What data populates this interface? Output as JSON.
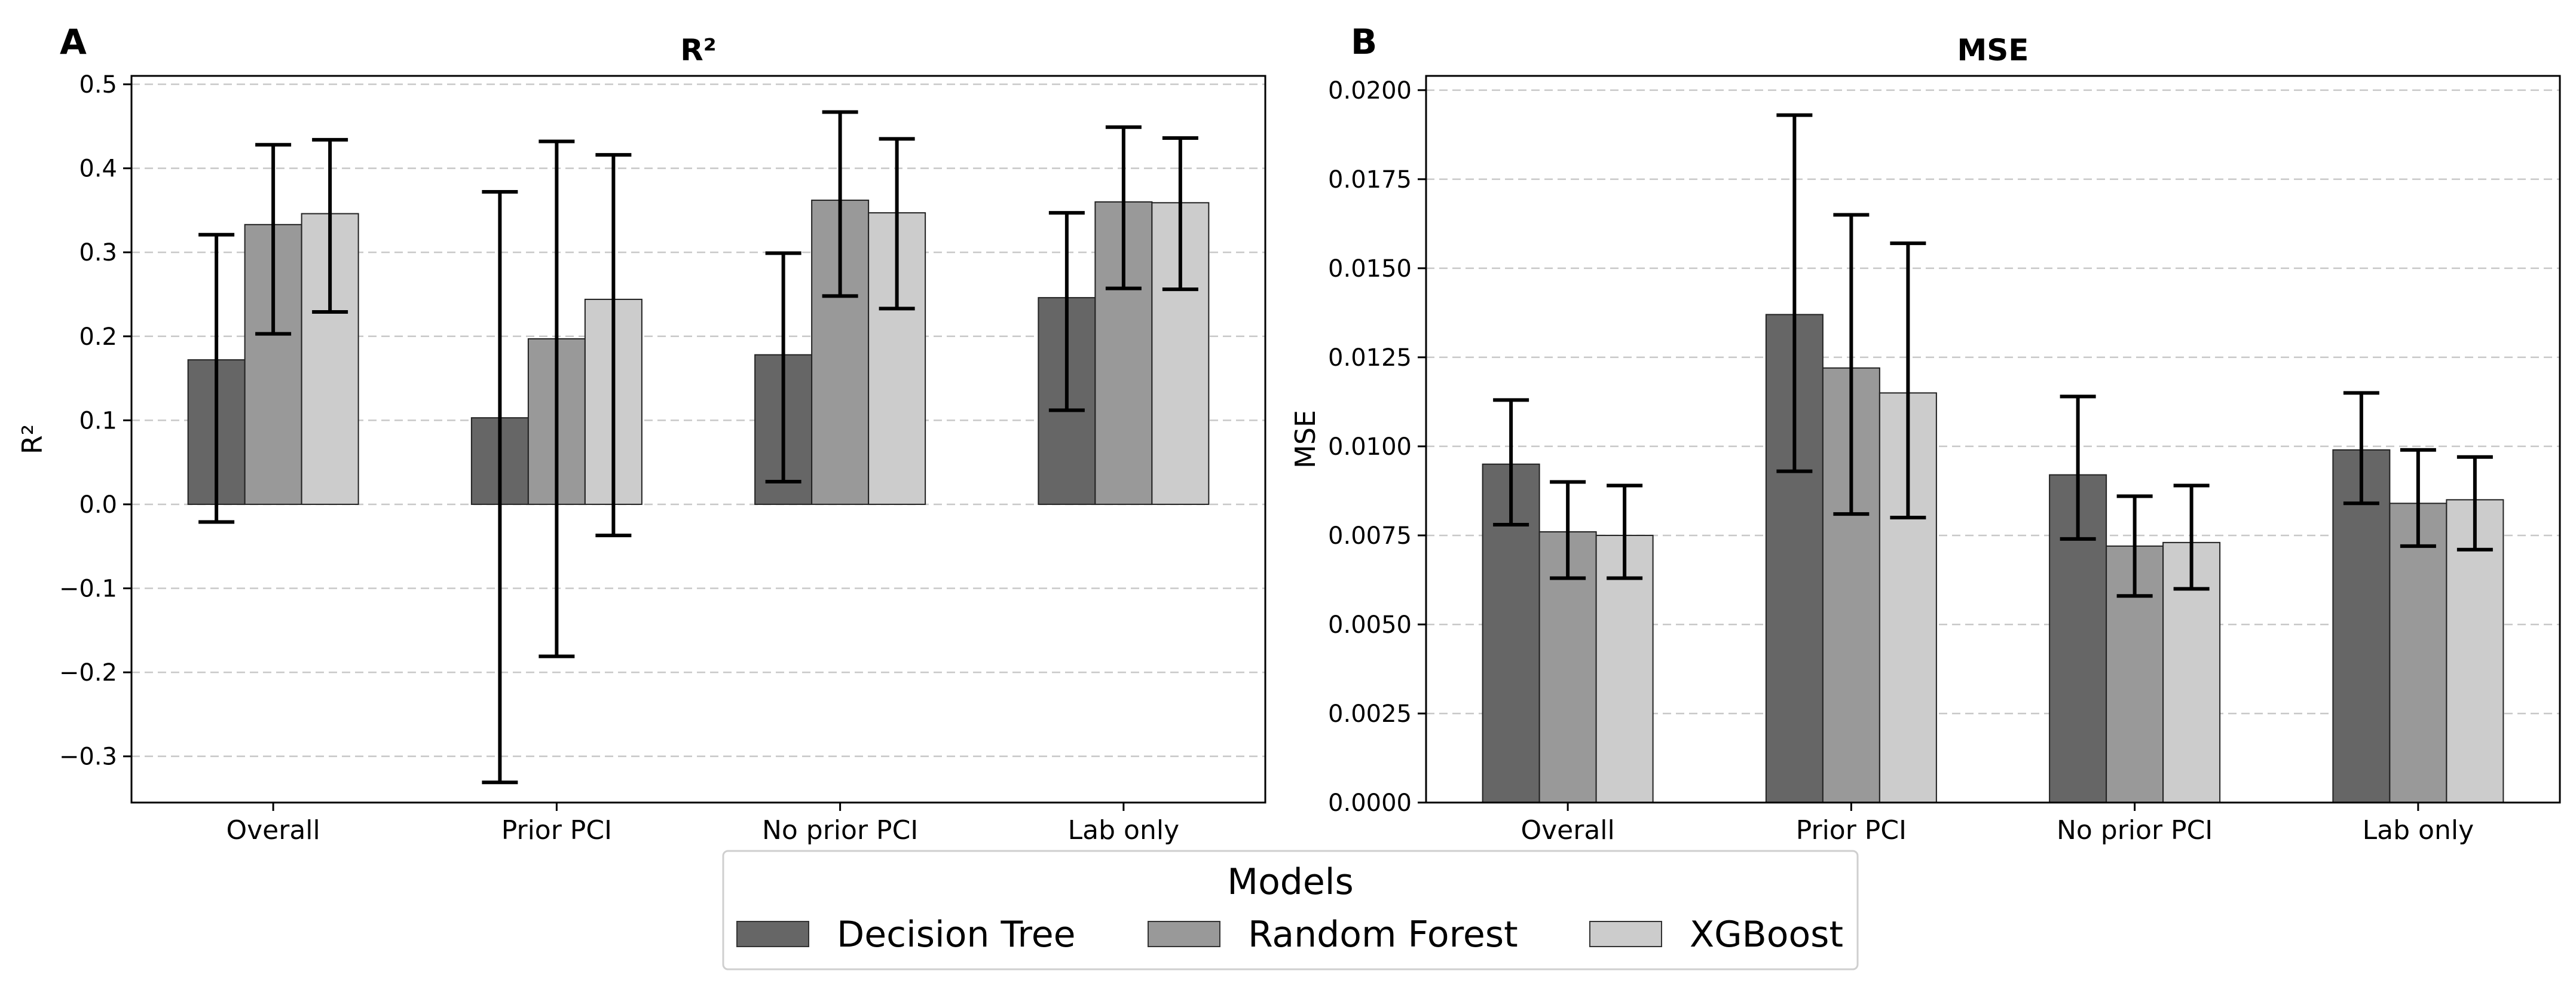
{
  "legend": {
    "title": "Models",
    "entries": [
      "Decision Tree",
      "Random Forest",
      "XGBoost"
    ]
  },
  "colors": {
    "Decision Tree": "#666666",
    "Random Forest": "#999999",
    "XGBoost": "#cccccc",
    "grid": "#c8c8c8",
    "error": "#000000"
  },
  "chart_data": [
    {
      "panel": "A",
      "type": "bar",
      "title": "R²",
      "xlabel": "",
      "ylabel": "R²",
      "categories": [
        "Overall",
        "Prior PCI",
        "No prior PCI",
        "Lab only"
      ],
      "ylim": [
        -0.355,
        0.51
      ],
      "yticks": [
        -0.3,
        -0.2,
        -0.1,
        0.0,
        0.1,
        0.2,
        0.3,
        0.4,
        0.5
      ],
      "ytick_labels": [
        "−0.3",
        "−0.2",
        "−0.1",
        "0.0",
        "0.1",
        "0.2",
        "0.3",
        "0.4",
        "0.5"
      ],
      "grid": "y-dashed",
      "series": [
        {
          "name": "Decision Tree",
          "values": [
            0.172,
            0.103,
            0.178,
            0.246
          ],
          "err_low": [
            -0.021,
            -0.331,
            0.027,
            0.112
          ],
          "err_high": [
            0.321,
            0.372,
            0.299,
            0.347
          ]
        },
        {
          "name": "Random Forest",
          "values": [
            0.333,
            0.197,
            0.362,
            0.36
          ],
          "err_low": [
            0.203,
            -0.181,
            0.248,
            0.257
          ],
          "err_high": [
            0.428,
            0.432,
            0.467,
            0.449
          ]
        },
        {
          "name": "XGBoost",
          "values": [
            0.346,
            0.244,
            0.347,
            0.359
          ],
          "err_low": [
            0.229,
            -0.037,
            0.233,
            0.256
          ],
          "err_high": [
            0.434,
            0.416,
            0.435,
            0.436
          ]
        }
      ]
    },
    {
      "panel": "B",
      "type": "bar",
      "title": "MSE",
      "xlabel": "",
      "ylabel": "MSE",
      "categories": [
        "Overall",
        "Prior PCI",
        "No prior PCI",
        "Lab only"
      ],
      "ylim": [
        0.0,
        0.0204
      ],
      "yticks": [
        0.0,
        0.0025,
        0.005,
        0.0075,
        0.01,
        0.0125,
        0.015,
        0.0175,
        0.02
      ],
      "ytick_labels": [
        "0.0000",
        "0.0025",
        "0.0050",
        "0.0075",
        "0.0100",
        "0.0125",
        "0.0150",
        "0.0175",
        "0.0200"
      ],
      "grid": "y-dashed",
      "series": [
        {
          "name": "Decision Tree",
          "values": [
            0.0095,
            0.0137,
            0.0092,
            0.0099
          ],
          "err_low": [
            0.0078,
            0.0093,
            0.0074,
            0.0084
          ],
          "err_high": [
            0.0113,
            0.0193,
            0.0114,
            0.0115
          ]
        },
        {
          "name": "Random Forest",
          "values": [
            0.0076,
            0.0122,
            0.0072,
            0.0084
          ],
          "err_low": [
            0.0063,
            0.0081,
            0.0058,
            0.0072
          ],
          "err_high": [
            0.009,
            0.0165,
            0.0086,
            0.0099
          ]
        },
        {
          "name": "XGBoost",
          "values": [
            0.0075,
            0.0115,
            0.0073,
            0.0085
          ],
          "err_low": [
            0.0063,
            0.008,
            0.006,
            0.0071
          ],
          "err_high": [
            0.0089,
            0.0157,
            0.0089,
            0.0097
          ]
        }
      ]
    }
  ]
}
